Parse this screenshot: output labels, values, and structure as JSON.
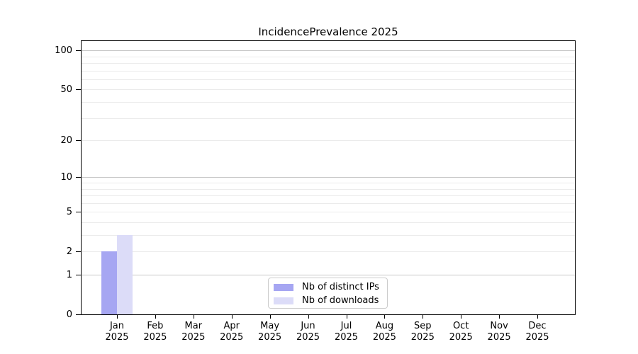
{
  "title": "IncidencePrevalence 2025",
  "colors": {
    "bar_distinct_ips": "#a6a6f2",
    "bar_downloads": "#dcdcf8",
    "grid_minor": "#ebebeb",
    "grid_major": "#c6c6c6",
    "axis": "#000000",
    "legend_border": "#cccccc",
    "background": "#ffffff",
    "text": "#000000"
  },
  "chart_data": {
    "type": "bar",
    "title": "IncidencePrevalence 2025",
    "x_categories": [
      "Jan",
      "Feb",
      "Mar",
      "Apr",
      "May",
      "Jun",
      "Jul",
      "Aug",
      "Sep",
      "Oct",
      "Nov",
      "Dec"
    ],
    "x_year_label": "2025",
    "series": [
      {
        "name": "Nb of distinct IPs",
        "color": "#a6a6f2",
        "values": [
          2,
          0,
          0,
          0,
          0,
          0,
          0,
          0,
          0,
          0,
          0,
          0
        ]
      },
      {
        "name": "Nb of downloads",
        "color": "#dcdcf8",
        "values": [
          3,
          0,
          0,
          0,
          0,
          0,
          0,
          0,
          0,
          0,
          0,
          0
        ]
      }
    ],
    "xlabel": "",
    "ylabel": "",
    "yscale": "log1p",
    "ylim": [
      0,
      118
    ],
    "yticks": [
      0,
      1,
      2,
      5,
      10,
      20,
      50,
      100
    ],
    "grid": true,
    "gridlines_major": [
      1,
      10,
      100
    ],
    "gridlines_minor": [
      2,
      3,
      4,
      5,
      6,
      7,
      8,
      9,
      20,
      30,
      40,
      50,
      60,
      70,
      80,
      90
    ],
    "legend_position": "lower center (inside plot)"
  }
}
